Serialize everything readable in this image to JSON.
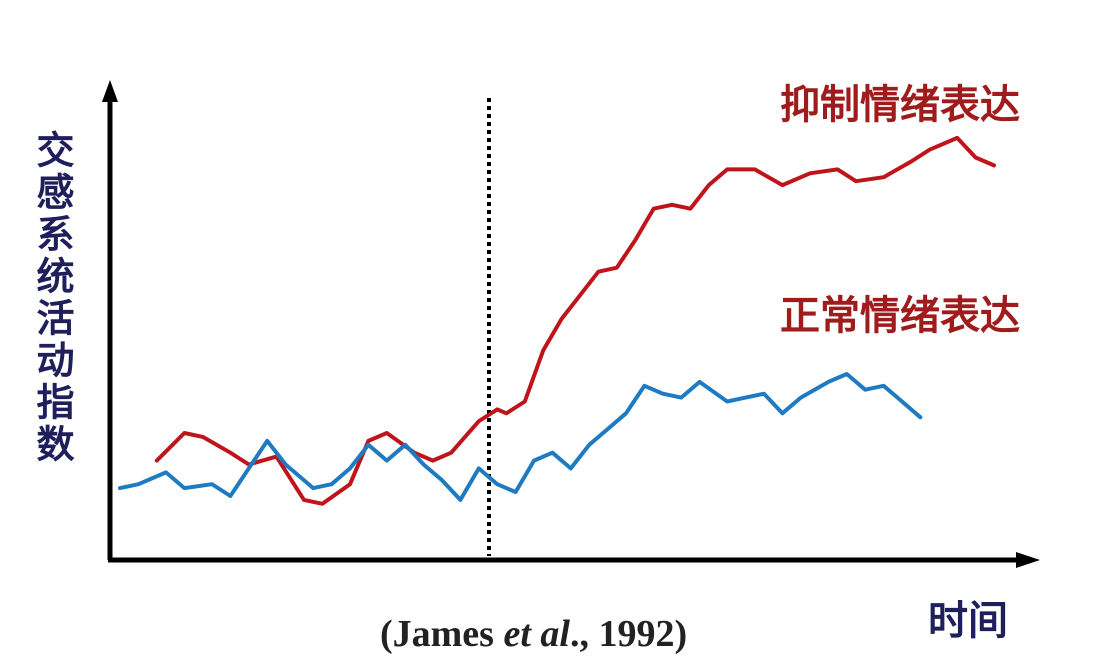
{
  "chart_data": {
    "type": "line",
    "ylabel": "交感系统活动指数",
    "xlabel": "时间",
    "x": [
      0,
      0.03,
      0.06,
      0.09,
      0.12,
      0.15,
      0.18,
      0.21,
      0.24,
      0.27,
      0.3,
      0.33,
      0.36,
      0.39,
      0.42,
      0.45,
      0.48,
      0.51,
      0.54,
      0.57,
      0.6,
      0.63,
      0.66,
      0.69,
      0.72,
      0.75,
      0.78,
      0.81,
      0.84,
      0.87,
      0.9,
      0.93,
      0.96,
      0.99,
      1.0
    ],
    "marker_x": 0.41,
    "series": [
      {
        "name": "抑制情绪表达",
        "color": "#c0141b",
        "x_start": 0.04,
        "x_end": 1.0,
        "points": [
          [
            0.04,
            0.24
          ],
          [
            0.07,
            0.31
          ],
          [
            0.09,
            0.3
          ],
          [
            0.12,
            0.26
          ],
          [
            0.14,
            0.23
          ],
          [
            0.17,
            0.25
          ],
          [
            0.2,
            0.14
          ],
          [
            0.22,
            0.13
          ],
          [
            0.25,
            0.18
          ],
          [
            0.27,
            0.29
          ],
          [
            0.29,
            0.31
          ],
          [
            0.32,
            0.26
          ],
          [
            0.34,
            0.24
          ],
          [
            0.36,
            0.26
          ],
          [
            0.39,
            0.34
          ],
          [
            0.41,
            0.37
          ],
          [
            0.42,
            0.36
          ],
          [
            0.44,
            0.39
          ],
          [
            0.46,
            0.52
          ],
          [
            0.48,
            0.6
          ],
          [
            0.5,
            0.66
          ],
          [
            0.52,
            0.72
          ],
          [
            0.54,
            0.73
          ],
          [
            0.56,
            0.8
          ],
          [
            0.58,
            0.88
          ],
          [
            0.6,
            0.89
          ],
          [
            0.62,
            0.88
          ],
          [
            0.64,
            0.94
          ],
          [
            0.66,
            0.98
          ],
          [
            0.69,
            0.98
          ],
          [
            0.72,
            0.94
          ],
          [
            0.75,
            0.97
          ],
          [
            0.78,
            0.98
          ],
          [
            0.8,
            0.95
          ],
          [
            0.83,
            0.96
          ],
          [
            0.86,
            1.0
          ],
          [
            0.88,
            1.03
          ],
          [
            0.91,
            1.06
          ],
          [
            0.93,
            1.01
          ],
          [
            0.95,
            0.99
          ]
        ]
      },
      {
        "name": "正常情绪表达",
        "color": "#1f7bc1",
        "x_start": 0.0,
        "x_end": 1.0,
        "points": [
          [
            0.0,
            0.17
          ],
          [
            0.02,
            0.18
          ],
          [
            0.05,
            0.21
          ],
          [
            0.07,
            0.17
          ],
          [
            0.1,
            0.18
          ],
          [
            0.12,
            0.15
          ],
          [
            0.14,
            0.22
          ],
          [
            0.16,
            0.29
          ],
          [
            0.18,
            0.23
          ],
          [
            0.19,
            0.21
          ],
          [
            0.21,
            0.17
          ],
          [
            0.23,
            0.18
          ],
          [
            0.25,
            0.22
          ],
          [
            0.27,
            0.28
          ],
          [
            0.29,
            0.24
          ],
          [
            0.31,
            0.28
          ],
          [
            0.33,
            0.23
          ],
          [
            0.35,
            0.19
          ],
          [
            0.37,
            0.14
          ],
          [
            0.39,
            0.22
          ],
          [
            0.41,
            0.18
          ],
          [
            0.43,
            0.16
          ],
          [
            0.45,
            0.24
          ],
          [
            0.47,
            0.26
          ],
          [
            0.49,
            0.22
          ],
          [
            0.51,
            0.28
          ],
          [
            0.53,
            0.32
          ],
          [
            0.55,
            0.36
          ],
          [
            0.57,
            0.43
          ],
          [
            0.59,
            0.41
          ],
          [
            0.61,
            0.4
          ],
          [
            0.63,
            0.44
          ],
          [
            0.66,
            0.39
          ],
          [
            0.68,
            0.4
          ],
          [
            0.7,
            0.41
          ],
          [
            0.72,
            0.36
          ],
          [
            0.74,
            0.4
          ],
          [
            0.77,
            0.44
          ],
          [
            0.79,
            0.46
          ],
          [
            0.81,
            0.42
          ],
          [
            0.83,
            0.43
          ],
          [
            0.85,
            0.39
          ],
          [
            0.87,
            0.35
          ]
        ]
      }
    ]
  },
  "labels": {
    "ylabel": "交感系统活动指数",
    "xlabel": "时间",
    "series_suppress": "抑制情绪表达",
    "series_normal": "正常情绪表达",
    "citation_prefix": "(James ",
    "citation_italic": "et al",
    "citation_suffix": "., 1992)"
  },
  "colors": {
    "axis": "#000000",
    "red_series": "#c0141b",
    "blue_series": "#1f7bc1",
    "label_red": "#a01b1b",
    "label_navy": "#1f1f5c"
  }
}
